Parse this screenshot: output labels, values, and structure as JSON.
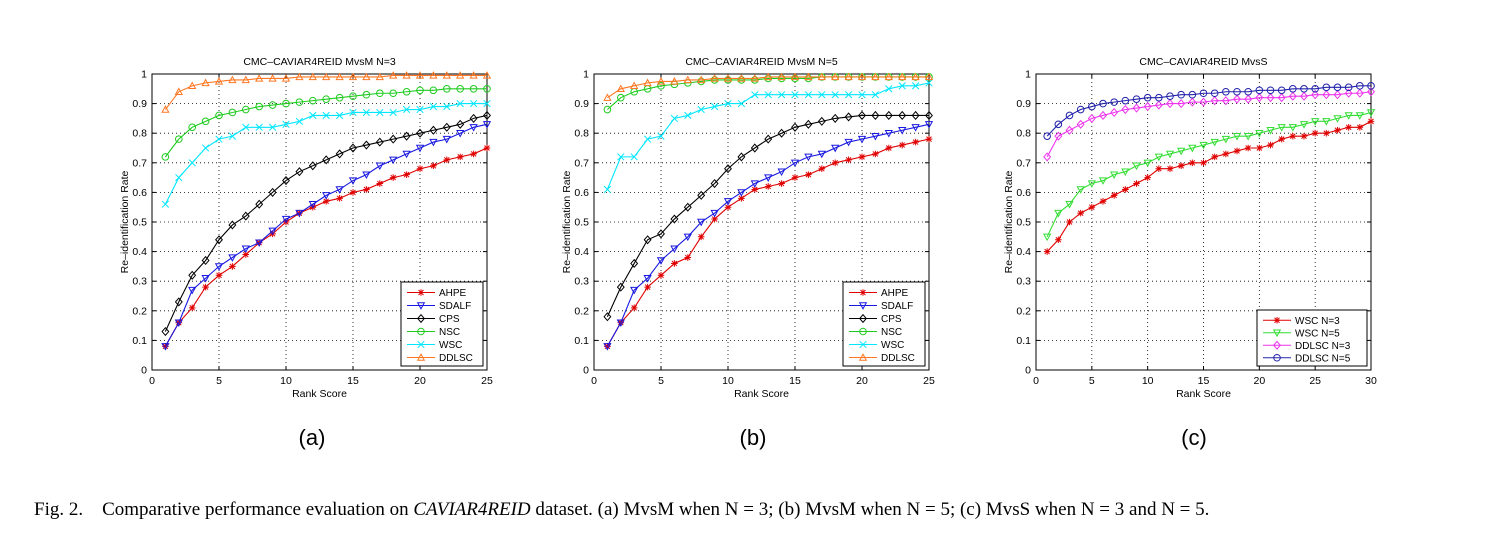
{
  "colors": {
    "AHPE": "#e00000",
    "SDALF": "#1818e0",
    "CPS": "#000000",
    "NSC": "#1fcc1f",
    "WSC": "#00e6ff",
    "DDLSC": "#ff7722",
    "WSC N=3": "#e00000",
    "WSC N=5": "#33dd33",
    "DDLSC N=3": "#ee33ee",
    "DDLSC N=5": "#2222aa"
  },
  "caption": {
    "fig_label": "Fig. 2.",
    "before_italic": "Comparative performance evaluation on",
    "italic": "CAVIAR4REID",
    "after_italic": "dataset. (a) MvsM when N = 3; (b) MvsM when N = 5; (c) MvsS when N = 3 and N = 5."
  },
  "chart_data": [
    {
      "type": "line",
      "panel_label": "(a)",
      "title": "CMC–CAVIAR4REID MvsM N=3",
      "xlabel": "Rank Score",
      "ylabel": "Re–identification Rate",
      "xlim": [
        0,
        25
      ],
      "ylim": [
        0,
        1
      ],
      "xticks": [
        0,
        5,
        10,
        15,
        20,
        25
      ],
      "yticks": [
        0,
        0.1,
        0.2,
        0.3,
        0.4,
        0.5,
        0.6,
        0.7,
        0.8,
        0.9,
        1
      ],
      "ytick_labels": [
        "0",
        "0.1",
        "0.2",
        "0.3",
        "0.4",
        "0.5",
        "0.6",
        "0.7",
        "0.8",
        "0.9",
        "1"
      ],
      "grid": true,
      "legend_position": "bottom-right",
      "series": [
        {
          "name": "AHPE",
          "marker": "star",
          "values": [
            0.08,
            0.16,
            0.21,
            0.28,
            0.32,
            0.35,
            0.39,
            0.43,
            0.46,
            0.5,
            0.53,
            0.55,
            0.57,
            0.58,
            0.6,
            0.61,
            0.63,
            0.65,
            0.66,
            0.68,
            0.69,
            0.71,
            0.72,
            0.73,
            0.75
          ]
        },
        {
          "name": "SDALF",
          "marker": "triangle-down",
          "values": [
            0.08,
            0.16,
            0.27,
            0.31,
            0.35,
            0.38,
            0.41,
            0.43,
            0.47,
            0.51,
            0.53,
            0.56,
            0.59,
            0.61,
            0.64,
            0.66,
            0.69,
            0.71,
            0.73,
            0.75,
            0.77,
            0.78,
            0.8,
            0.82,
            0.83
          ]
        },
        {
          "name": "CPS",
          "marker": "diamond",
          "values": [
            0.13,
            0.23,
            0.32,
            0.37,
            0.44,
            0.49,
            0.52,
            0.56,
            0.6,
            0.64,
            0.67,
            0.69,
            0.71,
            0.73,
            0.75,
            0.76,
            0.77,
            0.78,
            0.79,
            0.8,
            0.81,
            0.82,
            0.83,
            0.85,
            0.86
          ]
        },
        {
          "name": "NSC",
          "marker": "circle",
          "values": [
            0.72,
            0.78,
            0.82,
            0.84,
            0.86,
            0.87,
            0.88,
            0.89,
            0.895,
            0.9,
            0.905,
            0.91,
            0.915,
            0.92,
            0.925,
            0.93,
            0.935,
            0.935,
            0.94,
            0.945,
            0.945,
            0.95,
            0.95,
            0.95,
            0.95
          ]
        },
        {
          "name": "WSC",
          "marker": "x",
          "values": [
            0.56,
            0.65,
            0.7,
            0.75,
            0.78,
            0.79,
            0.82,
            0.82,
            0.82,
            0.83,
            0.84,
            0.86,
            0.86,
            0.86,
            0.87,
            0.87,
            0.87,
            0.87,
            0.88,
            0.88,
            0.89,
            0.89,
            0.9,
            0.9,
            0.9
          ]
        },
        {
          "name": "DDLSC",
          "marker": "triangle-up",
          "values": [
            0.88,
            0.94,
            0.96,
            0.97,
            0.975,
            0.98,
            0.98,
            0.985,
            0.985,
            0.985,
            0.99,
            0.99,
            0.99,
            0.99,
            0.99,
            0.99,
            0.99,
            0.995,
            0.995,
            0.995,
            0.995,
            0.995,
            0.995,
            0.995,
            0.995
          ]
        }
      ]
    },
    {
      "type": "line",
      "panel_label": "(b)",
      "title": "CMC–CAVIAR4REID MvsM N=5",
      "xlabel": "Rank Score",
      "ylabel": "Re–identification Rate",
      "xlim": [
        0,
        25
      ],
      "ylim": [
        0,
        1
      ],
      "xticks": [
        0,
        5,
        10,
        15,
        20,
        25
      ],
      "yticks": [
        0,
        0.1,
        0.2,
        0.3,
        0.4,
        0.5,
        0.6,
        0.7,
        0.8,
        0.9,
        1
      ],
      "ytick_labels": [
        "0",
        "0.1",
        "0.2",
        "0.3",
        "0.4",
        "0.5",
        "0.6",
        "0.7",
        "0.8",
        "0.9",
        "1"
      ],
      "grid": true,
      "legend_position": "bottom-right",
      "series": [
        {
          "name": "AHPE",
          "marker": "star",
          "values": [
            0.08,
            0.16,
            0.21,
            0.28,
            0.32,
            0.36,
            0.38,
            0.45,
            0.51,
            0.55,
            0.58,
            0.61,
            0.62,
            0.63,
            0.65,
            0.66,
            0.68,
            0.7,
            0.71,
            0.72,
            0.73,
            0.75,
            0.76,
            0.77,
            0.78
          ]
        },
        {
          "name": "SDALF",
          "marker": "triangle-down",
          "values": [
            0.08,
            0.16,
            0.27,
            0.31,
            0.37,
            0.41,
            0.45,
            0.5,
            0.53,
            0.57,
            0.6,
            0.63,
            0.65,
            0.67,
            0.7,
            0.72,
            0.73,
            0.75,
            0.77,
            0.78,
            0.79,
            0.8,
            0.81,
            0.82,
            0.83
          ]
        },
        {
          "name": "CPS",
          "marker": "diamond",
          "values": [
            0.18,
            0.28,
            0.36,
            0.44,
            0.46,
            0.51,
            0.55,
            0.59,
            0.63,
            0.68,
            0.72,
            0.75,
            0.78,
            0.8,
            0.82,
            0.83,
            0.84,
            0.85,
            0.855,
            0.86,
            0.86,
            0.86,
            0.86,
            0.86,
            0.86
          ]
        },
        {
          "name": "NSC",
          "marker": "circle",
          "values": [
            0.88,
            0.92,
            0.94,
            0.95,
            0.96,
            0.965,
            0.97,
            0.975,
            0.98,
            0.98,
            0.98,
            0.98,
            0.985,
            0.985,
            0.985,
            0.985,
            0.99,
            0.99,
            0.99,
            0.99,
            0.99,
            0.99,
            0.99,
            0.99,
            0.99
          ]
        },
        {
          "name": "WSC",
          "marker": "x",
          "values": [
            0.61,
            0.72,
            0.72,
            0.78,
            0.79,
            0.85,
            0.86,
            0.88,
            0.89,
            0.9,
            0.9,
            0.93,
            0.93,
            0.93,
            0.93,
            0.93,
            0.93,
            0.93,
            0.93,
            0.93,
            0.93,
            0.95,
            0.96,
            0.96,
            0.97
          ]
        },
        {
          "name": "DDLSC",
          "marker": "triangle-up",
          "values": [
            0.92,
            0.95,
            0.96,
            0.97,
            0.975,
            0.975,
            0.98,
            0.98,
            0.985,
            0.985,
            0.985,
            0.985,
            0.99,
            0.99,
            0.99,
            0.99,
            0.99,
            0.99,
            0.99,
            0.99,
            0.99,
            0.99,
            0.99,
            0.99,
            0.99
          ]
        }
      ]
    },
    {
      "type": "line",
      "panel_label": "(c)",
      "title": "CMC–CAVIAR4REID MvsS",
      "xlabel": "Rank Score",
      "ylabel": "Re–identification Rate",
      "xlim": [
        0,
        30
      ],
      "ylim": [
        0,
        1
      ],
      "xticks": [
        0,
        5,
        10,
        15,
        20,
        25,
        30
      ],
      "yticks": [
        0,
        0.1,
        0.2,
        0.3,
        0.4,
        0.5,
        0.6,
        0.7,
        0.8,
        0.9,
        1
      ],
      "ytick_labels": [
        "0",
        "0.1",
        "0.2",
        "0.3",
        "0.4",
        "0.5",
        "0.6",
        "0.7",
        "0.8",
        "0.9",
        "1"
      ],
      "grid": true,
      "legend_position": "bottom-right",
      "series": [
        {
          "name": "WSC N=3",
          "marker": "star",
          "values": [
            0.4,
            0.44,
            0.5,
            0.53,
            0.55,
            0.57,
            0.59,
            0.61,
            0.63,
            0.65,
            0.68,
            0.68,
            0.69,
            0.7,
            0.7,
            0.72,
            0.73,
            0.74,
            0.75,
            0.75,
            0.76,
            0.78,
            0.79,
            0.79,
            0.8,
            0.8,
            0.81,
            0.82,
            0.82,
            0.84
          ]
        },
        {
          "name": "WSC N=5",
          "marker": "triangle-down",
          "values": [
            0.45,
            0.53,
            0.56,
            0.61,
            0.63,
            0.64,
            0.66,
            0.67,
            0.69,
            0.7,
            0.72,
            0.73,
            0.74,
            0.75,
            0.76,
            0.77,
            0.78,
            0.79,
            0.79,
            0.8,
            0.81,
            0.82,
            0.82,
            0.83,
            0.84,
            0.84,
            0.85,
            0.86,
            0.86,
            0.87
          ]
        },
        {
          "name": "DDLSC N=3",
          "marker": "diamond",
          "values": [
            0.72,
            0.79,
            0.81,
            0.83,
            0.85,
            0.86,
            0.87,
            0.88,
            0.885,
            0.89,
            0.895,
            0.9,
            0.9,
            0.905,
            0.905,
            0.91,
            0.91,
            0.915,
            0.915,
            0.92,
            0.92,
            0.92,
            0.925,
            0.925,
            0.93,
            0.93,
            0.93,
            0.935,
            0.935,
            0.94
          ]
        },
        {
          "name": "DDLSC N=5",
          "marker": "circle",
          "values": [
            0.79,
            0.83,
            0.86,
            0.88,
            0.89,
            0.9,
            0.905,
            0.91,
            0.915,
            0.92,
            0.92,
            0.925,
            0.93,
            0.93,
            0.935,
            0.935,
            0.94,
            0.94,
            0.94,
            0.945,
            0.945,
            0.945,
            0.95,
            0.95,
            0.95,
            0.955,
            0.955,
            0.955,
            0.96,
            0.96
          ]
        }
      ]
    }
  ]
}
